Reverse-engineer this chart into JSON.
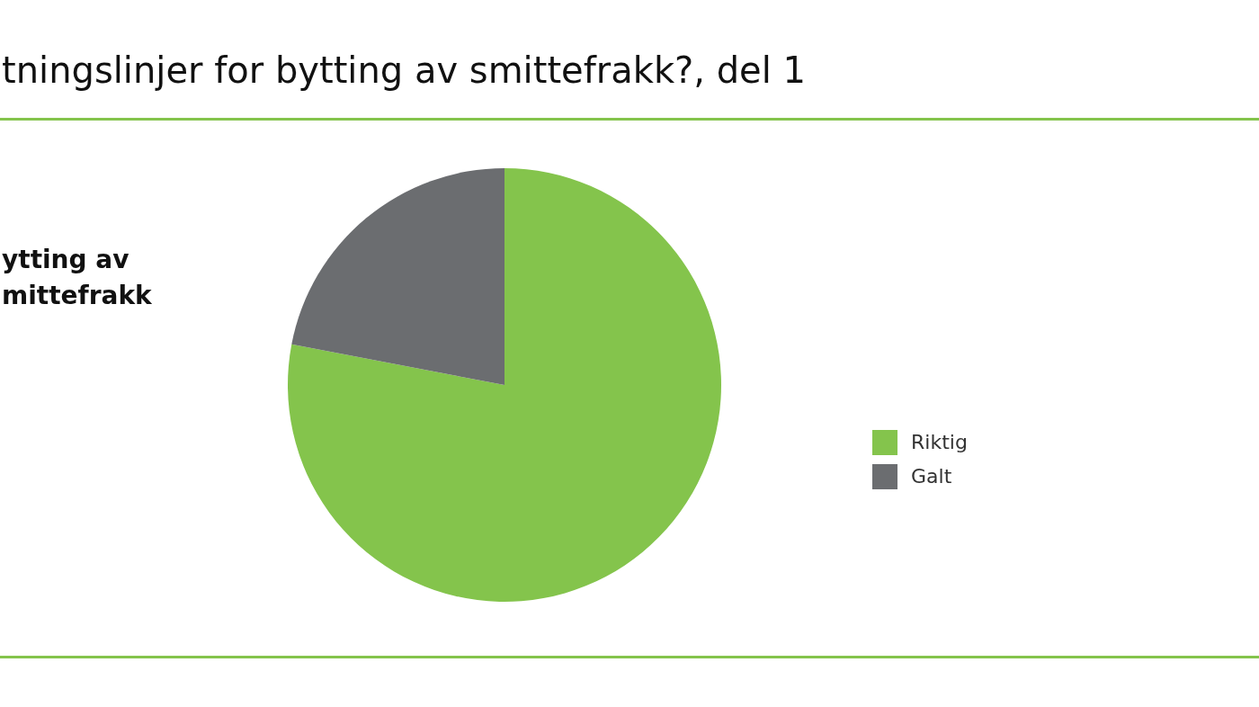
{
  "chart_data": {
    "type": "pie",
    "title": "tningslinjer for bytting av smittefrakk?, del 1",
    "subtitle": "ytting av mittefrakk",
    "categories": [
      "Riktig",
      "Galt"
    ],
    "values": [
      78,
      22
    ],
    "colors": [
      "#84c44c",
      "#6b6d70"
    ],
    "legend": "right"
  }
}
